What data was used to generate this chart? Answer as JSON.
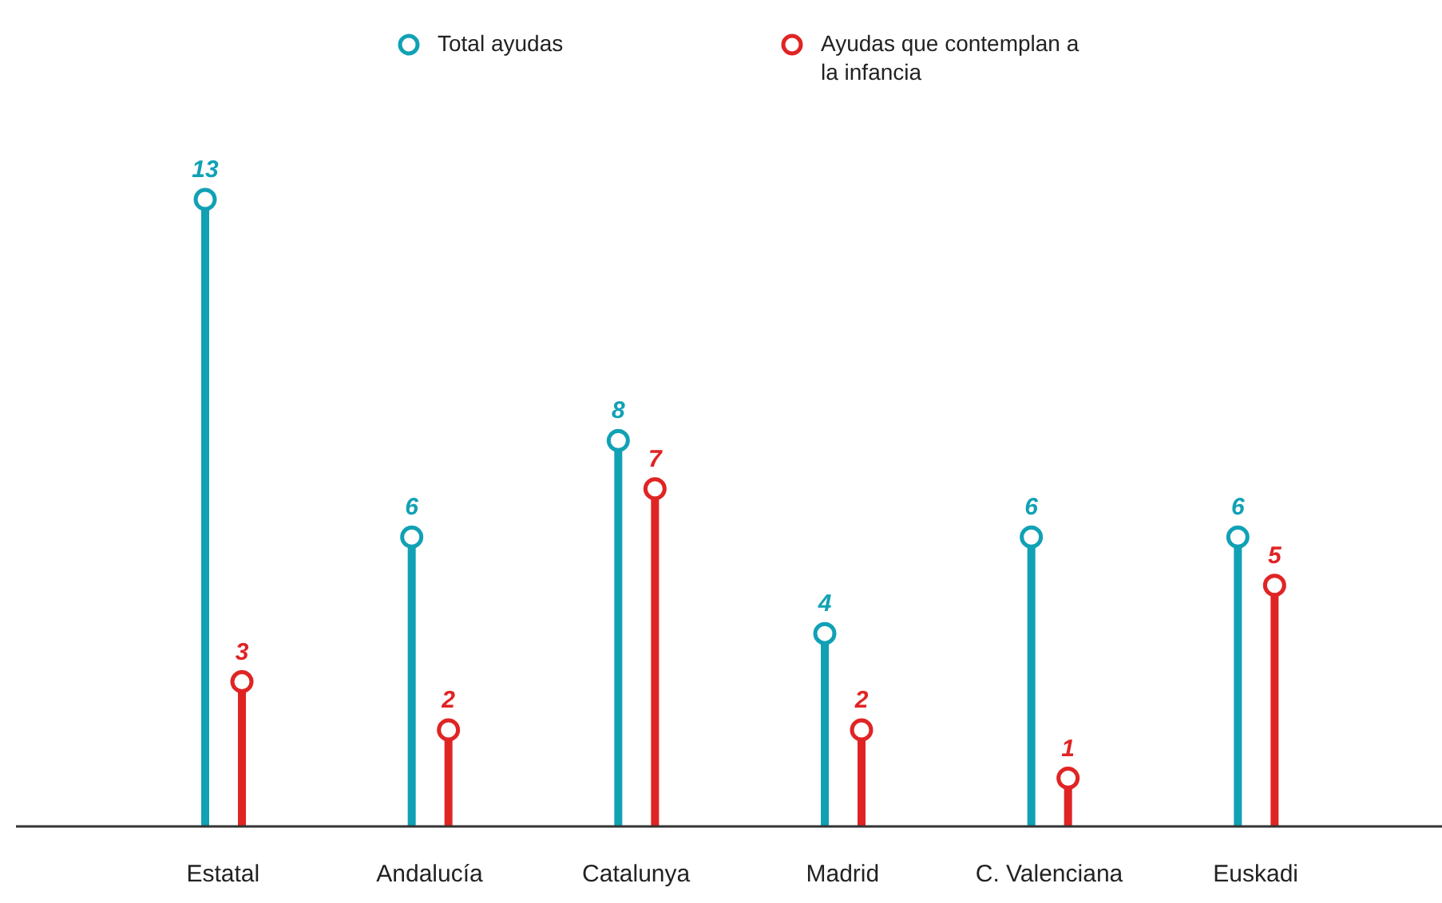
{
  "chart_data": {
    "type": "lollipop",
    "categories": [
      "Estatal",
      "Andalucía",
      "Catalunya",
      "Madrid",
      "C. Valenciana",
      "Euskadi"
    ],
    "series": [
      {
        "name": "Total ayudas",
        "color": "#11a1b5",
        "values": [
          13,
          6,
          8,
          4,
          6,
          6
        ]
      },
      {
        "name": "Ayudas que contemplan a la infancia",
        "color": "#e02424",
        "values": [
          3,
          2,
          7,
          2,
          1,
          5
        ]
      }
    ],
    "data_labels": true,
    "legend": "top",
    "marker": "circle"
  }
}
